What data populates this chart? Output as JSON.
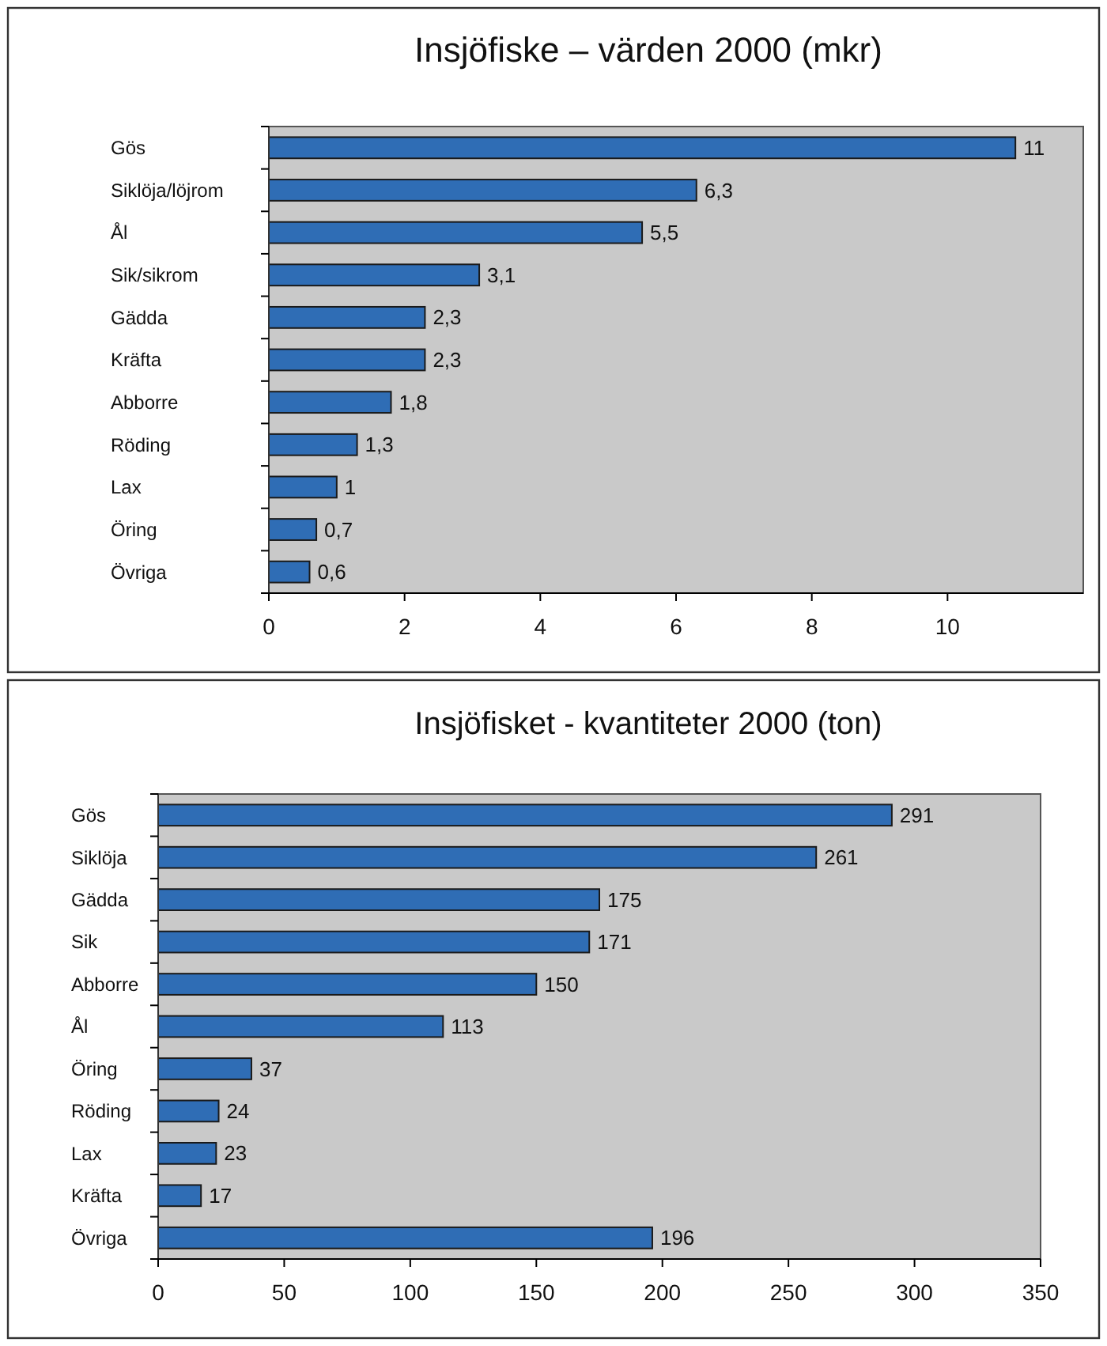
{
  "chart_data": [
    {
      "type": "bar",
      "orientation": "horizontal",
      "title": "Insjöfiske – värden 2000 (mkr)",
      "categories": [
        "Gös",
        "Siklöja/löjrom",
        "Ål",
        "Sik/sikrom",
        "Gädda",
        "Kräfta",
        "Abborre",
        "Röding",
        "Lax",
        "Öring",
        "Övriga"
      ],
      "values": [
        11,
        6.3,
        5.5,
        3.1,
        2.3,
        2.3,
        1.8,
        1.3,
        1,
        0.7,
        0.6
      ],
      "value_labels": [
        "11",
        "6,3",
        "5,5",
        "3,1",
        "2,3",
        "2,3",
        "1,8",
        "1,3",
        "1",
        "0,7",
        "0,6"
      ],
      "color": "#2f6db5",
      "xlim": [
        0,
        12
      ],
      "xticks": [
        0,
        2,
        4,
        6,
        8,
        10
      ]
    },
    {
      "type": "bar",
      "orientation": "horizontal",
      "title": "Insjöfisket - kvantiteter 2000 (ton)",
      "categories": [
        "Gös",
        "Siklöja",
        "Gädda",
        "Sik",
        "Abborre",
        "Ål",
        "Öring",
        "Röding",
        "Lax",
        "Kräfta",
        "Övriga"
      ],
      "values": [
        291,
        261,
        175,
        171,
        150,
        113,
        37,
        24,
        23,
        17,
        196
      ],
      "data_labels": true,
      "color": "#2f6db5",
      "xlim": [
        0,
        350
      ],
      "xticks": [
        0,
        50,
        100,
        150,
        200,
        250,
        300,
        350
      ]
    }
  ]
}
